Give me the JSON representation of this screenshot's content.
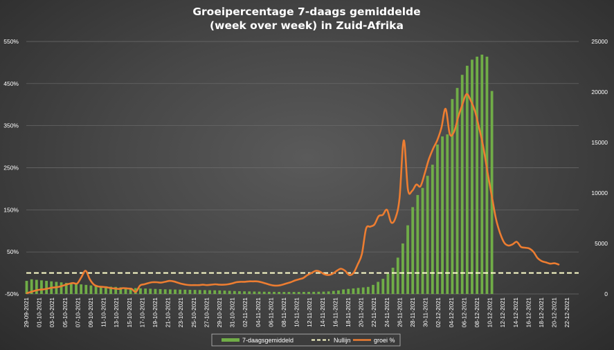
{
  "chart_data": {
    "type": "bar",
    "title": [
      "Groeipercentage 7-daags gemiddelde",
      "(week over week) in Zuid-Afrika"
    ],
    "left_axis": {
      "ticks": [
        "550%",
        "450%",
        "350%",
        "250%",
        "150%",
        "50%",
        "-50%"
      ],
      "min": -50,
      "max": 550
    },
    "right_axis": {
      "ticks": [
        "25000",
        "20000",
        "15000",
        "10000",
        "5000",
        "0"
      ],
      "min": 0,
      "max": 25000
    },
    "x_tick_labels": [
      "29-09-2021",
      "01-10-2021",
      "03-10-2021",
      "05-10-2021",
      "07-10-2021",
      "09-10-2021",
      "11-10-2021",
      "13-10-2021",
      "15-10-2021",
      "17-10-2021",
      "19-10-2021",
      "21-10-2021",
      "23-10-2021",
      "25-10-2021",
      "27-10-2021",
      "29-10-2021",
      "31-10-2021",
      "02-11-2021",
      "04-11-2021",
      "06-11-2021",
      "08-11-2021",
      "10-11-2021",
      "12-11-2021",
      "14-11-2021",
      "16-11-2021",
      "18-11-2021",
      "20-11-2021",
      "22-11-2021",
      "24-11-2021",
      "26-11-2021",
      "28-11-2021",
      "30-11-2021",
      "02-12-2021",
      "04-12-2021",
      "06-12-2021",
      "08-12-2021",
      "10-12-2021",
      "12-12-2021",
      "14-12-2021",
      "16-12-2021",
      "18-12-2021",
      "20-12-2021",
      "22-12-2021"
    ],
    "grid": true,
    "legend_position": "bottom",
    "series": [
      {
        "name": "7-daagsgemiddeld",
        "type": "bar",
        "axis": "right",
        "color": "#70ad47",
        "values": [
          1300,
          1450,
          1400,
          1350,
          1300,
          1250,
          1200,
          1150,
          1100,
          1050,
          1000,
          950,
          900,
          850,
          800,
          780,
          760,
          720,
          700,
          660,
          640,
          610,
          580,
          560,
          540,
          520,
          500,
          480,
          460,
          450,
          440,
          430,
          420,
          410,
          400,
          390,
          380,
          370,
          360,
          350,
          330,
          310,
          290,
          270,
          260,
          250,
          240,
          230,
          220,
          215,
          210,
          205,
          200,
          200,
          200,
          200,
          205,
          210,
          215,
          220,
          230,
          250,
          300,
          350,
          450,
          500,
          550,
          600,
          650,
          700,
          900,
          1200,
          1500,
          2000,
          2600,
          3600,
          5000,
          6800,
          8600,
          9800,
          10500,
          11700,
          12800,
          14800,
          15600,
          15800,
          19300,
          20400,
          21700,
          22600,
          23200,
          23500,
          23700,
          23500,
          20100
        ]
      },
      {
        "name": "Nullijn",
        "type": "line",
        "axis": "left",
        "color": "#ffffcc",
        "dashed": true,
        "value": 0
      },
      {
        "name": "groei %",
        "type": "line",
        "axis": "left",
        "color": "#ed7d31",
        "values": [
          -48,
          -45,
          -42,
          -40,
          -39,
          -37,
          -35,
          -34,
          -32,
          -29,
          -26,
          -24,
          -25,
          -10,
          5,
          -15,
          -28,
          -32,
          -33,
          -34,
          -36,
          -37,
          -38,
          -36,
          -37,
          -38,
          -45,
          -30,
          -27,
          -24,
          -22,
          -22,
          -23,
          -21,
          -19,
          -20,
          -23,
          -26,
          -28,
          -29,
          -29,
          -29,
          -28,
          -29,
          -28,
          -27,
          -28,
          -28,
          -27,
          -25,
          -22,
          -21,
          -21,
          -20,
          -20,
          -20,
          -22,
          -25,
          -28,
          -30,
          -30,
          -28,
          -25,
          -22,
          -18,
          -15,
          -12,
          -5,
          0,
          5,
          3,
          -3,
          -5,
          -2,
          5,
          10,
          5,
          -5,
          0,
          20,
          45,
          105,
          110,
          115,
          135,
          138,
          150,
          120,
          130,
          178,
          315,
          198,
          195,
          210,
          206,
          236,
          270,
          295,
          315,
          345,
          390,
          330,
          335,
          370,
          400,
          425,
          410,
          385,
          345,
          300,
          240,
          185,
          130,
          95,
          72,
          65,
          68,
          74,
          62,
          60,
          58,
          50,
          35,
          28,
          25,
          22,
          23,
          20
        ]
      }
    ]
  }
}
